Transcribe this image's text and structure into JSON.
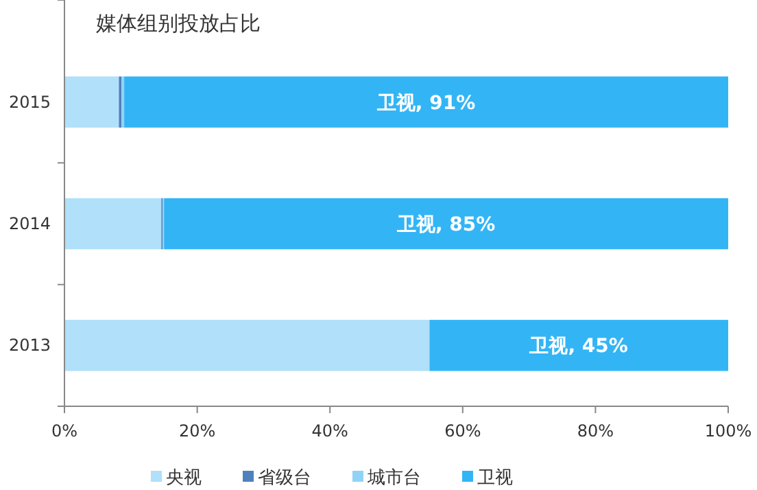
{
  "chart_data": {
    "type": "bar",
    "orientation": "horizontal",
    "stacked": true,
    "title": "媒体组别投放占比",
    "categories": [
      "2015",
      "2014",
      "2013"
    ],
    "series": [
      {
        "name": "央视",
        "color": "#b0e0fa",
        "values": [
          8.2,
          14.6,
          55
        ]
      },
      {
        "name": "省级台",
        "color": "#4f81bd",
        "values": [
          0.4,
          0.2,
          0
        ]
      },
      {
        "name": "城市台",
        "color": "#8fd3f7",
        "values": [
          0.4,
          0.2,
          0
        ]
      },
      {
        "name": "卫视",
        "color": "#33b5f5",
        "values": [
          91,
          85,
          45
        ],
        "value_labels": [
          "卫视, 91%",
          "卫视, 85%",
          "卫视, 45%"
        ]
      }
    ],
    "xlim": [
      0,
      100
    ],
    "xticks": [
      {
        "value": 0,
        "label": "0%"
      },
      {
        "value": 20,
        "label": "20%"
      },
      {
        "value": 40,
        "label": "40%"
      },
      {
        "value": 60,
        "label": "60%"
      },
      {
        "value": 80,
        "label": "80%"
      },
      {
        "value": 100,
        "label": "100%"
      }
    ],
    "grid": false,
    "legend": "bottom"
  }
}
